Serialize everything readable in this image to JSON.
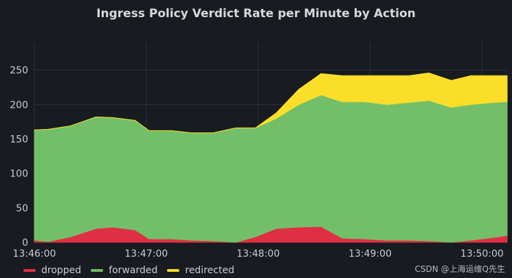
{
  "panel": {
    "title": "Ingress Policy Verdict Rate per Minute by Action"
  },
  "watermark": "CSDN @上海运维Q先生",
  "colors": {
    "background": "#181b1f",
    "grid": "#2f3238",
    "text": "#ccccdc",
    "dropped": "#e02f44",
    "forwarded": "#73bf69",
    "redirected": "#fade2a"
  },
  "chart_data": {
    "type": "area",
    "stacked": true,
    "title": "Ingress Policy Verdict Rate per Minute by Action",
    "xlabel": "",
    "ylabel": "",
    "ylim": [
      0,
      290
    ],
    "yticks": [
      0,
      50,
      100,
      150,
      200,
      250
    ],
    "ytick_labels": [
      "0",
      "50",
      "100",
      "150",
      "200",
      "250"
    ],
    "xlim": [
      0,
      33.8
    ],
    "xticks": [
      0,
      8,
      16,
      24,
      32
    ],
    "xtick_labels": [
      "13:46:00",
      "13:47:00",
      "13:48:00",
      "13:49:00",
      "13:50:00"
    ],
    "x_unit": "tick index (7.5 s steps from 13:46:00)",
    "x": [
      0,
      1,
      2.6,
      4.4,
      5.6,
      7.2,
      8.2,
      9.8,
      11.2,
      12.8,
      14.4,
      15.8,
      17.3,
      18.9,
      20.5,
      22,
      23.6,
      25.2,
      26.8,
      28.2,
      29.8,
      31.2,
      32.8,
      33.8
    ],
    "series": [
      {
        "name": "dropped",
        "values": [
          3,
          1,
          8,
          20,
          22,
          18,
          5,
          5,
          3,
          2,
          0,
          8,
          20,
          22,
          23,
          6,
          5,
          3,
          3,
          2,
          0,
          3,
          7,
          10
        ]
      },
      {
        "name": "forwarded",
        "values": [
          160,
          163,
          161,
          162,
          159,
          159,
          157,
          157,
          156,
          157,
          166,
          158,
          160,
          178,
          191,
          198,
          199,
          197,
          200,
          204,
          196,
          197,
          196,
          194
        ]
      },
      {
        "name": "redirected",
        "values": [
          0,
          0,
          0,
          0,
          0,
          0,
          0,
          0,
          0,
          0,
          0,
          0,
          8,
          22,
          31,
          38,
          38,
          42,
          39,
          40,
          39,
          42,
          39,
          38
        ]
      }
    ],
    "legend": [
      "dropped",
      "forwarded",
      "redirected"
    ],
    "legend_position": "bottom-left",
    "grid": true
  }
}
